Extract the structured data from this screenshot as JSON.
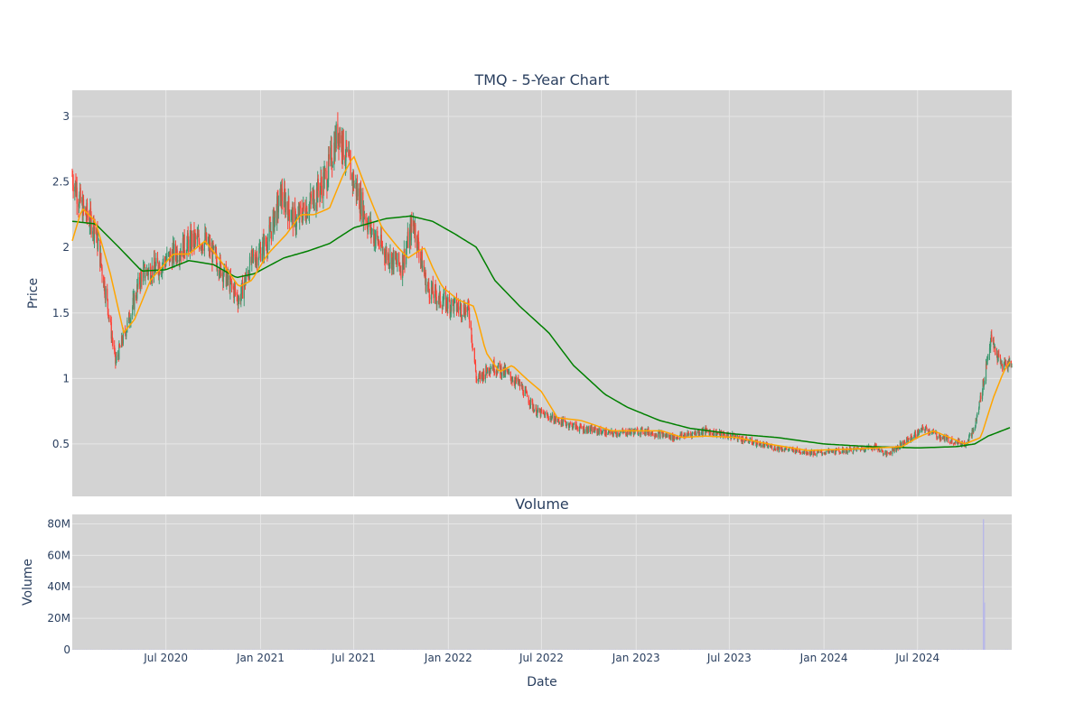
{
  "chart_data": [
    {
      "type": "candlestick",
      "title": "TMQ - 5-Year Chart",
      "ylabel": "Price",
      "xlabel": "",
      "x_range": [
        "2020-01-01",
        "2024-12-31"
      ],
      "ylim": [
        0.1,
        3.2
      ],
      "y_ticks": [
        "0.5",
        "1",
        "1.5",
        "2",
        "2.5",
        "3"
      ],
      "grid": true,
      "colors": {
        "increasing": "#3d9970",
        "decreasing": "#ff4136",
        "ma_short": "#ffa500",
        "ma_long": "#008000",
        "background": "#d3d3d3",
        "grid": "#e6e6e6"
      },
      "price_anchors": [
        [
          "2020-01-01",
          2.55
        ],
        [
          "2020-01-20",
          2.3
        ],
        [
          "2020-02-15",
          2.15
        ],
        [
          "2020-03-10",
          1.55
        ],
        [
          "2020-03-25",
          1.12
        ],
        [
          "2020-04-20",
          1.45
        ],
        [
          "2020-05-15",
          1.8
        ],
        [
          "2020-06-15",
          1.85
        ],
        [
          "2020-07-15",
          1.95
        ],
        [
          "2020-08-20",
          2.05
        ],
        [
          "2020-09-15",
          2.05
        ],
        [
          "2020-10-15",
          1.85
        ],
        [
          "2020-11-20",
          1.6
        ],
        [
          "2020-12-15",
          1.9
        ],
        [
          "2021-01-15",
          2.05
        ],
        [
          "2021-02-10",
          2.4
        ],
        [
          "2021-03-10",
          2.2
        ],
        [
          "2021-04-10",
          2.35
        ],
        [
          "2021-05-10",
          2.55
        ],
        [
          "2021-06-01",
          2.9
        ],
        [
          "2021-07-01",
          2.5
        ],
        [
          "2021-08-01",
          2.15
        ],
        [
          "2021-09-01",
          1.95
        ],
        [
          "2021-10-01",
          1.85
        ],
        [
          "2021-10-25",
          2.2
        ],
        [
          "2021-11-20",
          1.7
        ],
        [
          "2021-12-15",
          1.6
        ],
        [
          "2022-01-15",
          1.55
        ],
        [
          "2022-02-10",
          1.52
        ],
        [
          "2022-02-25",
          0.98
        ],
        [
          "2022-03-25",
          1.1
        ],
        [
          "2022-04-20",
          1.05
        ],
        [
          "2022-05-20",
          0.95
        ],
        [
          "2022-06-20",
          0.75
        ],
        [
          "2022-08-01",
          0.68
        ],
        [
          "2022-09-15",
          0.62
        ],
        [
          "2022-11-15",
          0.58
        ],
        [
          "2023-01-15",
          0.6
        ],
        [
          "2023-03-15",
          0.55
        ],
        [
          "2023-05-15",
          0.6
        ],
        [
          "2023-07-15",
          0.55
        ],
        [
          "2023-09-15",
          0.48
        ],
        [
          "2023-12-15",
          0.43
        ],
        [
          "2024-02-15",
          0.45
        ],
        [
          "2024-04-10",
          0.48
        ],
        [
          "2024-05-01",
          0.42
        ],
        [
          "2024-06-01",
          0.5
        ],
        [
          "2024-07-15",
          0.62
        ],
        [
          "2024-08-15",
          0.55
        ],
        [
          "2024-10-01",
          0.5
        ],
        [
          "2024-10-20",
          0.62
        ],
        [
          "2024-11-05",
          0.95
        ],
        [
          "2024-11-20",
          1.3
        ],
        [
          "2024-12-10",
          1.1
        ],
        [
          "2024-12-31",
          1.12
        ]
      ],
      "ma_short": [
        [
          "2020-01-01",
          2.05
        ],
        [
          "2020-01-20",
          2.3
        ],
        [
          "2020-02-15",
          2.2
        ],
        [
          "2020-03-15",
          1.8
        ],
        [
          "2020-04-10",
          1.35
        ],
        [
          "2020-05-01",
          1.45
        ],
        [
          "2020-06-01",
          1.75
        ],
        [
          "2020-07-15",
          1.95
        ],
        [
          "2020-08-15",
          1.95
        ],
        [
          "2020-09-15",
          2.05
        ],
        [
          "2020-10-15",
          1.9
        ],
        [
          "2020-11-20",
          1.7
        ],
        [
          "2020-12-15",
          1.75
        ],
        [
          "2021-01-15",
          1.95
        ],
        [
          "2021-02-20",
          2.1
        ],
        [
          "2021-03-20",
          2.25
        ],
        [
          "2021-04-15",
          2.25
        ],
        [
          "2021-05-15",
          2.3
        ],
        [
          "2021-06-10",
          2.55
        ],
        [
          "2021-07-01",
          2.7
        ],
        [
          "2021-07-25",
          2.45
        ],
        [
          "2021-08-25",
          2.15
        ],
        [
          "2021-09-25",
          2.0
        ],
        [
          "2021-10-15",
          1.92
        ],
        [
          "2021-11-15",
          2.0
        ],
        [
          "2021-12-01",
          1.85
        ],
        [
          "2021-12-20",
          1.7
        ],
        [
          "2022-01-20",
          1.6
        ],
        [
          "2022-02-20",
          1.55
        ],
        [
          "2022-03-15",
          1.2
        ],
        [
          "2022-04-10",
          1.05
        ],
        [
          "2022-05-05",
          1.1
        ],
        [
          "2022-06-01",
          1.0
        ],
        [
          "2022-07-01",
          0.9
        ],
        [
          "2022-08-01",
          0.7
        ],
        [
          "2022-09-15",
          0.68
        ],
        [
          "2022-11-15",
          0.6
        ],
        [
          "2023-01-15",
          0.6
        ],
        [
          "2023-02-20",
          0.6
        ],
        [
          "2023-04-01",
          0.55
        ],
        [
          "2023-05-15",
          0.56
        ],
        [
          "2023-07-15",
          0.55
        ],
        [
          "2023-09-15",
          0.5
        ],
        [
          "2023-12-01",
          0.45
        ],
        [
          "2024-02-15",
          0.46
        ],
        [
          "2024-04-15",
          0.47
        ],
        [
          "2024-06-01",
          0.48
        ],
        [
          "2024-07-01",
          0.55
        ],
        [
          "2024-08-01",
          0.6
        ],
        [
          "2024-09-01",
          0.55
        ],
        [
          "2024-10-01",
          0.5
        ],
        [
          "2024-11-01",
          0.55
        ],
        [
          "2024-11-25",
          0.85
        ],
        [
          "2024-12-15",
          1.05
        ],
        [
          "2024-12-31",
          1.15
        ]
      ],
      "ma_long": [
        [
          "2020-01-01",
          2.2
        ],
        [
          "2020-02-15",
          2.18
        ],
        [
          "2020-04-01",
          2.0
        ],
        [
          "2020-05-15",
          1.82
        ],
        [
          "2020-07-01",
          1.83
        ],
        [
          "2020-08-15",
          1.9
        ],
        [
          "2020-10-01",
          1.87
        ],
        [
          "2020-11-15",
          1.77
        ],
        [
          "2020-12-20",
          1.8
        ],
        [
          "2021-02-15",
          1.92
        ],
        [
          "2021-04-01",
          1.97
        ],
        [
          "2021-05-15",
          2.03
        ],
        [
          "2021-07-01",
          2.15
        ],
        [
          "2021-09-01",
          2.22
        ],
        [
          "2021-10-20",
          2.24
        ],
        [
          "2021-12-01",
          2.2
        ],
        [
          "2022-01-15",
          2.1
        ],
        [
          "2022-02-25",
          2.0
        ],
        [
          "2022-04-01",
          1.75
        ],
        [
          "2022-05-20",
          1.55
        ],
        [
          "2022-07-15",
          1.35
        ],
        [
          "2022-09-01",
          1.1
        ],
        [
          "2022-11-01",
          0.88
        ],
        [
          "2022-12-15",
          0.78
        ],
        [
          "2023-02-15",
          0.68
        ],
        [
          "2023-04-15",
          0.62
        ],
        [
          "2023-07-01",
          0.58
        ],
        [
          "2023-10-01",
          0.55
        ],
        [
          "2024-01-01",
          0.5
        ],
        [
          "2024-04-01",
          0.48
        ],
        [
          "2024-07-01",
          0.47
        ],
        [
          "2024-09-15",
          0.48
        ],
        [
          "2024-10-20",
          0.5
        ],
        [
          "2024-11-15",
          0.56
        ],
        [
          "2024-12-31",
          0.63
        ]
      ]
    },
    {
      "type": "bar",
      "title": "Volume",
      "ylabel": "Volume",
      "xlabel": "Date",
      "x_range": [
        "2020-01-01",
        "2024-12-31"
      ],
      "ylim": [
        0,
        86000000
      ],
      "y_ticks": [
        "0",
        "20M",
        "40M",
        "60M",
        "80M"
      ],
      "x_ticks": [
        "Jul 2020",
        "Jan 2021",
        "Jul 2021",
        "Jan 2022",
        "Jul 2022",
        "Jan 2023",
        "Jul 2023",
        "Jan 2024",
        "Jul 2024"
      ],
      "grid": true,
      "volume_spikes": [
        [
          "2024-11-06",
          83000000
        ],
        [
          "2024-11-08",
          30000000
        ]
      ],
      "typical_volume": 300000
    }
  ]
}
